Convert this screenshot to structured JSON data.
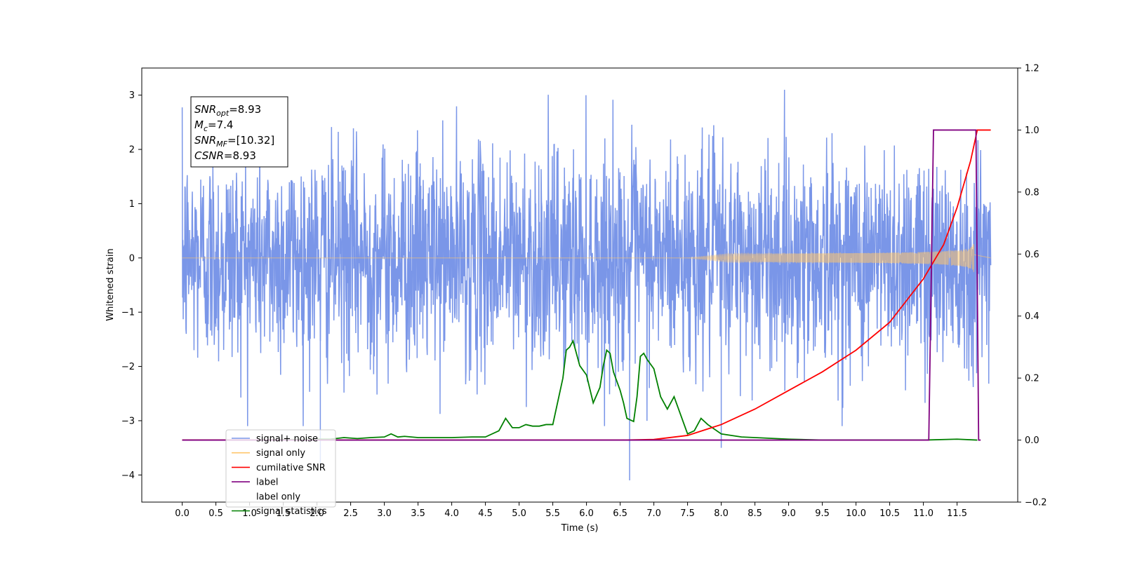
{
  "chart_data": {
    "type": "line",
    "xlabel": "Time (s)",
    "ylabel_left": "Whitened strain",
    "ylabel_right": "",
    "xlim": [
      -0.6,
      12.4
    ],
    "ylim_left": [
      -4.5,
      3.5
    ],
    "ylim_right": [
      -0.2,
      1.2
    ],
    "x_ticks": [
      "0.0",
      "0.5",
      "1.0",
      "1.5",
      "2.0",
      "2.5",
      "3.0",
      "3.5",
      "4.0",
      "4.5",
      "5.0",
      "5.5",
      "6.0",
      "6.5",
      "7.0",
      "7.5",
      "8.0",
      "8.5",
      "9.0",
      "9.5",
      "10.0",
      "10.5",
      "11.0",
      "11.5"
    ],
    "y_ticks_left": [
      "3",
      "2",
      "1",
      "0",
      "−1",
      "−2",
      "−3",
      "−4"
    ],
    "y_ticks_right": [
      "1.2",
      "1.0",
      "0.8",
      "0.6",
      "0.4",
      "0.2",
      "0.0",
      "−0.2"
    ],
    "grid": false,
    "legend_position": "lower-left",
    "series": [
      {
        "name": "signal+ noise",
        "color": "#7a96e8",
        "axis": "left",
        "description_values": {
          "x_start": 0.0,
          "x_end": 12.0,
          "noise_sigma": 1.0,
          "y_max": 3.1,
          "y_min": -4.1
        }
      },
      {
        "name": "signal only",
        "color": "#ffc66b",
        "axis": "left",
        "chirp": {
          "t_start": 7.5,
          "t_merge": 11.75,
          "peak_amplitude": 0.5
        }
      },
      {
        "name": "cumilative SNR",
        "color": "#ff0000",
        "axis": "right",
        "x": [
          0.0,
          6.5,
          7.0,
          7.5,
          8.0,
          8.5,
          9.0,
          9.5,
          10.0,
          10.5,
          11.0,
          11.3,
          11.5,
          11.7,
          11.8,
          11.85,
          12.0
        ],
        "values": [
          0.0,
          0.0,
          0.002,
          0.015,
          0.05,
          0.1,
          0.16,
          0.22,
          0.29,
          0.38,
          0.52,
          0.63,
          0.75,
          0.9,
          1.0,
          1.0,
          1.0
        ]
      },
      {
        "name": "label",
        "color": "#800080",
        "axis": "right",
        "x": [
          0.0,
          11.08,
          11.15,
          11.2,
          11.78,
          11.82,
          11.85
        ],
        "values": [
          0.0,
          0.0,
          1.0,
          1.0,
          1.0,
          0.0,
          0.0
        ]
      },
      {
        "name": "label only",
        "color": "#ffffff",
        "axis": "right",
        "x": [],
        "values": []
      },
      {
        "name": "signal statistics",
        "color": "#008000",
        "axis": "right",
        "x": [
          0.0,
          1.0,
          2.0,
          2.2,
          2.4,
          2.6,
          2.8,
          3.0,
          3.1,
          3.2,
          3.3,
          3.5,
          4.0,
          4.3,
          4.5,
          4.7,
          4.8,
          4.9,
          5.0,
          5.1,
          5.2,
          5.3,
          5.4,
          5.5,
          5.6,
          5.65,
          5.7,
          5.75,
          5.8,
          5.9,
          6.0,
          6.1,
          6.2,
          6.25,
          6.3,
          6.35,
          6.4,
          6.5,
          6.55,
          6.6,
          6.7,
          6.75,
          6.8,
          6.85,
          6.9,
          7.0,
          7.1,
          7.2,
          7.3,
          7.5,
          7.6,
          7.7,
          7.8,
          8.0,
          8.3,
          8.5,
          9.0,
          9.5,
          10.0,
          11.0,
          11.5,
          11.8
        ],
        "values": [
          0.0,
          0.0,
          0.003,
          0.003,
          0.008,
          0.005,
          0.008,
          0.01,
          0.02,
          0.01,
          0.012,
          0.008,
          0.008,
          0.01,
          0.01,
          0.03,
          0.07,
          0.04,
          0.04,
          0.05,
          0.045,
          0.045,
          0.05,
          0.05,
          0.15,
          0.2,
          0.29,
          0.3,
          0.32,
          0.24,
          0.21,
          0.12,
          0.17,
          0.24,
          0.29,
          0.28,
          0.22,
          0.16,
          0.12,
          0.07,
          0.06,
          0.14,
          0.27,
          0.28,
          0.26,
          0.23,
          0.14,
          0.1,
          0.14,
          0.02,
          0.03,
          0.07,
          0.05,
          0.02,
          0.01,
          0.008,
          0.003,
          0.0,
          0.0,
          0.0,
          0.003,
          0.0
        ]
      }
    ],
    "annotation": {
      "lines": [
        {
          "main": "SNR",
          "sub": "opt",
          "rest": "=8.93"
        },
        {
          "main": "M",
          "sub": "c",
          "rest": "=7.4"
        },
        {
          "main": "SNR",
          "sub": "MF",
          "rest": "=[10.32]"
        },
        {
          "main": "CSNR",
          "sub": "",
          "rest": "=8.93"
        }
      ]
    }
  }
}
